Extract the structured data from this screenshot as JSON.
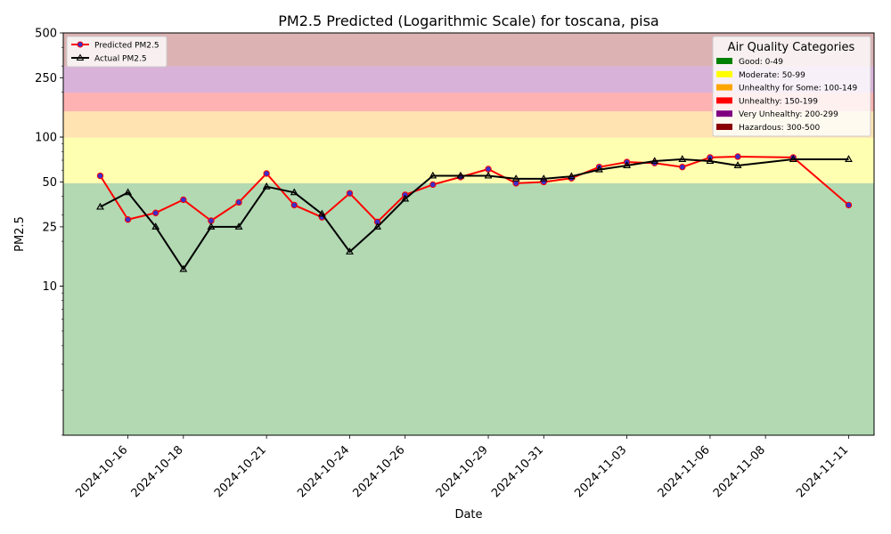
{
  "chart_data": {
    "type": "line",
    "title": "PM2.5 Predicted (Logarithmic Scale) for toscana, pisa",
    "xlabel": "Date",
    "ylabel": "PM2.5",
    "y_scale": "log",
    "ylim": [
      1,
      500
    ],
    "xlim": [
      "2024-10-13T16:00",
      "2024-11-11T22:00"
    ],
    "y_ticks": [
      10,
      25,
      50,
      100,
      250,
      500
    ],
    "y_tick_labels": [
      "10",
      "25",
      "50",
      "100",
      "250",
      "500"
    ],
    "x_ticks": [
      "2024-10-16",
      "2024-10-18",
      "2024-10-21",
      "2024-10-24",
      "2024-10-26",
      "2024-10-29",
      "2024-10-31",
      "2024-11-03",
      "2024-11-06",
      "2024-11-08",
      "2024-11-11"
    ],
    "grid": false,
    "series": [
      {
        "name": "Predicted PM2.5",
        "color": "#ff0000",
        "marker_color": "#3b2fc9",
        "marker": "circle",
        "points": [
          [
            "2024-10-15",
            55
          ],
          [
            "2024-10-16",
            28
          ],
          [
            "2024-10-17",
            31
          ],
          [
            "2024-10-18",
            38
          ],
          [
            "2024-10-19",
            27.5
          ],
          [
            "2024-10-20",
            36.5
          ],
          [
            "2024-10-21",
            57
          ],
          [
            "2024-10-22",
            35
          ],
          [
            "2024-10-23",
            29
          ],
          [
            "2024-10-24",
            42
          ],
          [
            "2024-10-25",
            27
          ],
          [
            "2024-10-26",
            41
          ],
          [
            "2024-10-27",
            48
          ],
          [
            "2024-10-28",
            54
          ],
          [
            "2024-10-29",
            61
          ],
          [
            "2024-10-30",
            49
          ],
          [
            "2024-10-31",
            50
          ],
          [
            "2024-11-01",
            53
          ],
          [
            "2024-11-02",
            63
          ],
          [
            "2024-11-03",
            68
          ],
          [
            "2024-11-04",
            67
          ],
          [
            "2024-11-05",
            63
          ],
          [
            "2024-11-06",
            73
          ],
          [
            "2024-11-07",
            74
          ],
          [
            "2024-11-09",
            73
          ],
          [
            "2024-11-11",
            35
          ]
        ]
      },
      {
        "name": "Actual PM2.5",
        "color": "#000000",
        "marker": "triangle",
        "points": [
          [
            "2024-10-15",
            34
          ],
          [
            "2024-10-16",
            42.5
          ],
          [
            "2024-10-17",
            25
          ],
          [
            "2024-10-18",
            13
          ],
          [
            "2024-10-19",
            25
          ],
          [
            "2024-10-20",
            25
          ],
          [
            "2024-10-21",
            46.5
          ],
          [
            "2024-10-22",
            42.5
          ],
          [
            "2024-10-23",
            30.5
          ],
          [
            "2024-10-24",
            17
          ],
          [
            "2024-10-25",
            25
          ],
          [
            "2024-10-26",
            38.5
          ],
          [
            "2024-10-27",
            55
          ],
          [
            "2024-10-28",
            55
          ],
          [
            "2024-10-29",
            55
          ],
          [
            "2024-10-30",
            52.5
          ],
          [
            "2024-10-31",
            52.5
          ],
          [
            "2024-11-01",
            54.5
          ],
          [
            "2024-11-02",
            60.5
          ],
          [
            "2024-11-03",
            64.5
          ],
          [
            "2024-11-04",
            69
          ],
          [
            "2024-11-05",
            71
          ],
          [
            "2024-11-06",
            69
          ],
          [
            "2024-11-07",
            64.5
          ],
          [
            "2024-11-09",
            71
          ],
          [
            "2024-11-11",
            71
          ]
        ]
      }
    ],
    "bands": [
      {
        "label": "Good: 0-49",
        "range": [
          0,
          49
        ],
        "color": "#008000"
      },
      {
        "label": "Moderate: 50-99",
        "range": [
          49,
          99
        ],
        "color": "#ffff00"
      },
      {
        "label": "Unhealthy for Some: 100-149",
        "range": [
          99,
          149
        ],
        "color": "#ffa500"
      },
      {
        "label": "Unhealthy: 150-199",
        "range": [
          149,
          199
        ],
        "color": "#ff0000"
      },
      {
        "label": "Very Unhealthy: 200-299",
        "range": [
          199,
          299
        ],
        "color": "#800080"
      },
      {
        "label": "Hazardous: 300-500",
        "range": [
          299,
          500
        ],
        "color": "#8b0000"
      }
    ],
    "band_legend_title": "Air Quality Categories",
    "band_legend_position": "top-right",
    "series_legend_position": "top-left"
  }
}
